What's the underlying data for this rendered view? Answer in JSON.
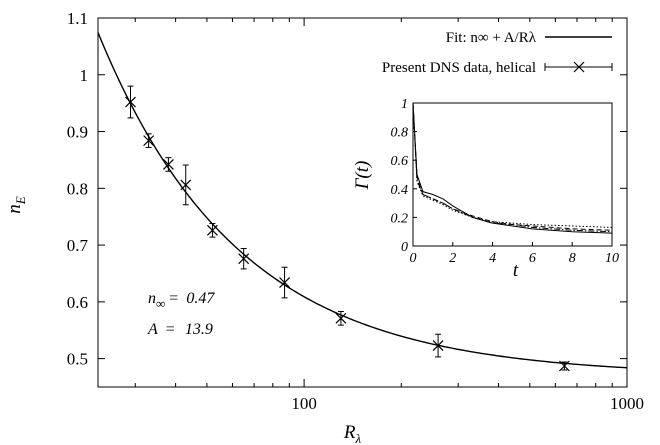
{
  "chart_data": [
    {
      "type": "scatter",
      "xlabel": "R",
      "xlabel_sub": "λ",
      "ylabel": "n",
      "ylabel_sub": "E",
      "xscale": "log",
      "xlim": [
        23,
        1000
      ],
      "ylim": [
        0.45,
        1.1
      ],
      "xticks": [
        100,
        1000
      ],
      "yticks": [
        0.5,
        0.6,
        0.7,
        0.8,
        0.9,
        1.0,
        1.1
      ],
      "ytick_labels": [
        "0.5",
        "0.6",
        "0.7",
        "0.8",
        "0.9",
        "1",
        "1.1"
      ],
      "grid": false,
      "legend_position": "top-right",
      "series": [
        {
          "name": "Fit: n∞ + A/Rλ",
          "kind": "line",
          "n_inf": 0.47,
          "A": 13.9
        },
        {
          "name": "Present DNS data, helical",
          "kind": "errorbar-points",
          "x": [
            29,
            33,
            38,
            43,
            52,
            65,
            87,
            130,
            260,
            640
          ],
          "y": [
            0.952,
            0.884,
            0.842,
            0.806,
            0.726,
            0.676,
            0.634,
            0.571,
            0.523,
            0.487
          ],
          "err": [
            0.028,
            0.012,
            0.012,
            0.035,
            0.012,
            0.018,
            0.027,
            0.012,
            0.02,
            0.007
          ]
        }
      ],
      "annotations": [
        {
          "lhs": "n",
          "lhs_sub": "∞",
          "rel": " =",
          "value": "0.47"
        },
        {
          "lhs": "A",
          "lhs_sub": "",
          "rel": " =",
          "value": "13.9"
        }
      ]
    },
    {
      "type": "line",
      "xlabel": "t",
      "ylabel": "Γ(t)",
      "xlim": [
        0,
        10
      ],
      "ylim": [
        0,
        1
      ],
      "xticks": [
        0,
        2,
        4,
        6,
        8,
        10
      ],
      "yticks": [
        0,
        0.2,
        0.4,
        0.6,
        0.8,
        1
      ],
      "ytick_labels": [
        "0",
        "0.2",
        "0.4",
        "0.6",
        "0.8",
        "1"
      ],
      "series": [
        {
          "style": "solid",
          "x": [
            0,
            0.2,
            0.5,
            1.0,
            1.5,
            2,
            3,
            4,
            5,
            6,
            8,
            10
          ],
          "y": [
            1.0,
            0.5,
            0.38,
            0.36,
            0.33,
            0.28,
            0.2,
            0.16,
            0.14,
            0.12,
            0.1,
            0.09
          ]
        },
        {
          "style": "dashed",
          "x": [
            0,
            0.2,
            0.5,
            1.0,
            1.5,
            2,
            3,
            4,
            5,
            6,
            8,
            10
          ],
          "y": [
            1.0,
            0.48,
            0.36,
            0.33,
            0.3,
            0.26,
            0.21,
            0.17,
            0.15,
            0.14,
            0.12,
            0.11
          ]
        },
        {
          "style": "dotted",
          "x": [
            0,
            0.2,
            0.5,
            1.0,
            1.5,
            2,
            3,
            4,
            5,
            6,
            8,
            10
          ],
          "y": [
            1.0,
            0.45,
            0.35,
            0.32,
            0.29,
            0.25,
            0.2,
            0.17,
            0.16,
            0.15,
            0.14,
            0.13
          ]
        },
        {
          "style": "dashdot",
          "x": [
            0,
            0.2,
            0.5,
            1.0,
            1.5,
            2,
            3,
            4,
            5,
            6,
            8,
            10
          ],
          "y": [
            1.0,
            0.46,
            0.36,
            0.33,
            0.3,
            0.26,
            0.2,
            0.16,
            0.15,
            0.13,
            0.11,
            0.1
          ]
        }
      ]
    }
  ]
}
